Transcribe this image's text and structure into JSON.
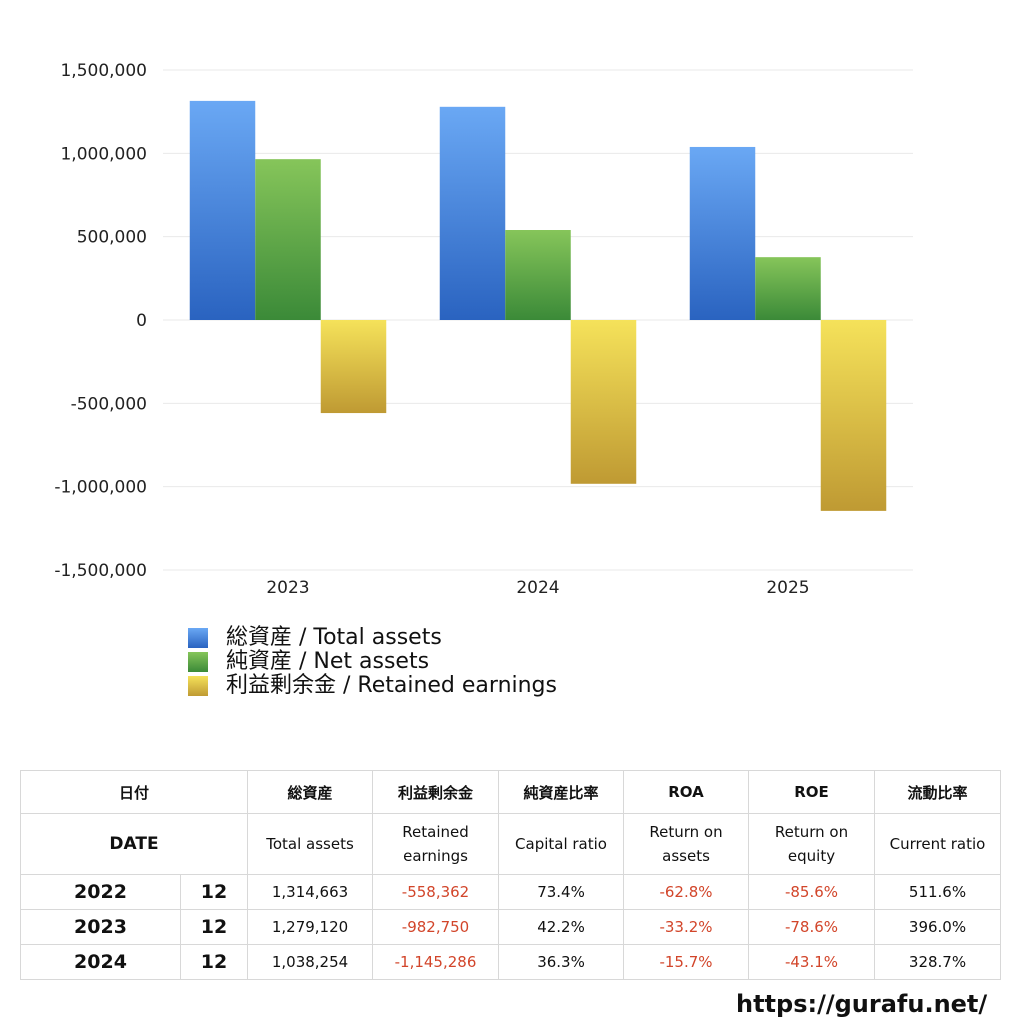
{
  "chart_data": {
    "type": "bar",
    "title": "",
    "xlabel": "",
    "ylabel": "",
    "categories": [
      "2023",
      "2024",
      "2025"
    ],
    "series": [
      {
        "name": "総資産 / Total assets",
        "values": [
          1314663,
          1279120,
          1038254
        ],
        "color": "#4a8be0"
      },
      {
        "name": "純資産 / Net assets",
        "values": [
          965000,
          540000,
          377000
        ],
        "color": "#5aa547"
      },
      {
        "name": "利益剰余金 / Retained earnings",
        "values": [
          -558362,
          -982750,
          -1145286
        ],
        "color": "#dcbf45"
      }
    ],
    "ylim": [
      -1500000,
      1500000
    ],
    "yticks": [
      1500000,
      1000000,
      500000,
      0,
      -500000,
      -1000000,
      -1500000
    ],
    "ytick_labels": [
      "1,500,000",
      "1,000,000",
      "500,000",
      "0",
      "-500,000",
      "-1,000,000",
      "-1,500,000"
    ],
    "grid": true,
    "legend": "bottom-left"
  },
  "legend": {
    "items": [
      {
        "label": "総資産 / Total assets"
      },
      {
        "label": "純資産 / Net assets"
      },
      {
        "label": "利益剰余金 / Retained earnings"
      }
    ]
  },
  "table": {
    "header_jp": {
      "date": "日付",
      "total_assets": "総資産",
      "retained": "利益剰余金",
      "capital_ratio": "純資産比率",
      "roa": "ROA",
      "roe": "ROE",
      "current_ratio": "流動比率"
    },
    "header_en": {
      "date": "DATE",
      "total_assets": "Total assets",
      "retained_1": "Retained",
      "retained_2": "earnings",
      "capital_ratio": "Capital ratio",
      "roa_1": "Return on",
      "roa_2": "assets",
      "roe_1": "Return on",
      "roe_2": "equity",
      "current_ratio": "Current ratio"
    },
    "rows": [
      {
        "year": "2022",
        "month": "12",
        "total_assets": "1,314,663",
        "retained": "-558,362",
        "capital_ratio": "73.4%",
        "roa": "-62.8%",
        "roe": "-85.6%",
        "current_ratio": "511.6%"
      },
      {
        "year": "2023",
        "month": "12",
        "total_assets": "1,279,120",
        "retained": "-982,750",
        "capital_ratio": "42.2%",
        "roa": "-33.2%",
        "roe": "-78.6%",
        "current_ratio": "396.0%"
      },
      {
        "year": "2024",
        "month": "12",
        "total_assets": "1,038,254",
        "retained": "-1,145,286",
        "capital_ratio": "36.3%",
        "roa": "-15.7%",
        "roe": "-43.1%",
        "current_ratio": "328.7%"
      }
    ]
  },
  "site_url": "https://gurafu.net/"
}
